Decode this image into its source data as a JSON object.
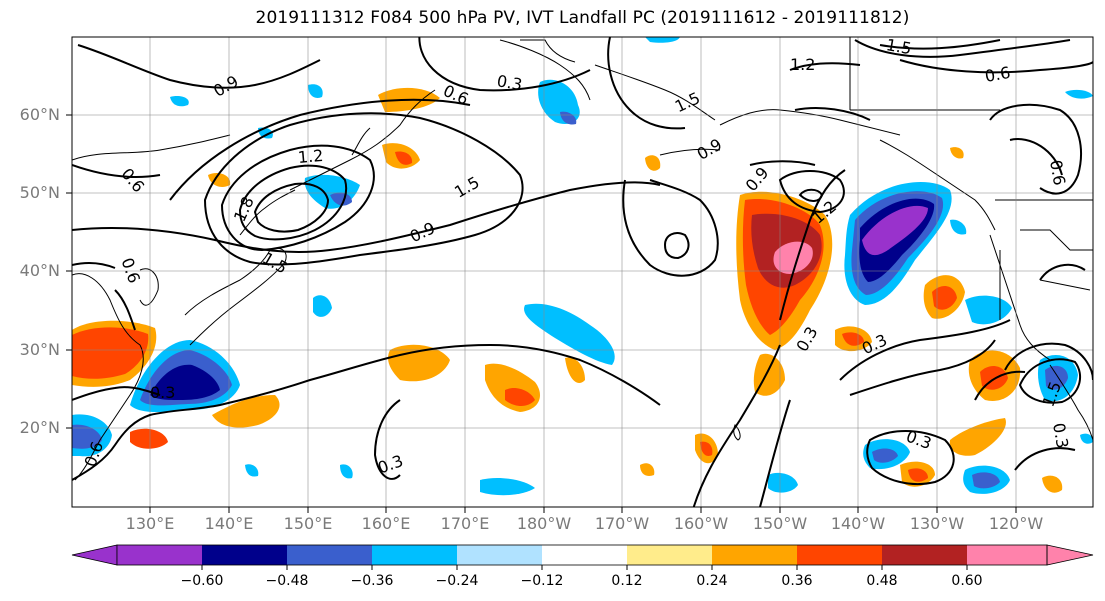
{
  "title": "2019111312 F084 500 hPa PV, IVT Landfall PC (2019111612 - 2019111812)",
  "lat_labels": [
    "60°N",
    "50°N",
    "40°N",
    "30°N",
    "20°N"
  ],
  "lon_labels": [
    "130°E",
    "140°E",
    "150°E",
    "160°E",
    "170°E",
    "180°W",
    "170°W",
    "160°W",
    "150°W",
    "140°W",
    "130°W",
    "120°W"
  ],
  "colorbar": {
    "colors": [
      "#9932cc",
      "#00008b",
      "#3a5fcd",
      "#00bfff",
      "#b0e2ff",
      "#ffffff",
      "#ffffff",
      "#ffec8b",
      "#ffa500",
      "#ff4500",
      "#b22222",
      "#ff82ab"
    ],
    "tick_labels": [
      "−0.60",
      "−0.48",
      "−0.36",
      "−0.24",
      "−0.12",
      "0.12",
      "0.24",
      "0.36",
      "0.48",
      "0.60"
    ]
  },
  "contour_labels": [
    "0.9",
    "0.6",
    "0.3",
    "1.2",
    "1.5",
    "1.8",
    "1.5",
    "0.9",
    "1.2",
    "1.5",
    "0.9",
    "0.6",
    "0.3",
    "0.9",
    "1.2",
    "0.3",
    "0.3",
    "0.3",
    "0.6",
    "1.5",
    "0.6",
    "0.6",
    "0.3",
    "0.3",
    "1.5",
    "0.6"
  ]
}
